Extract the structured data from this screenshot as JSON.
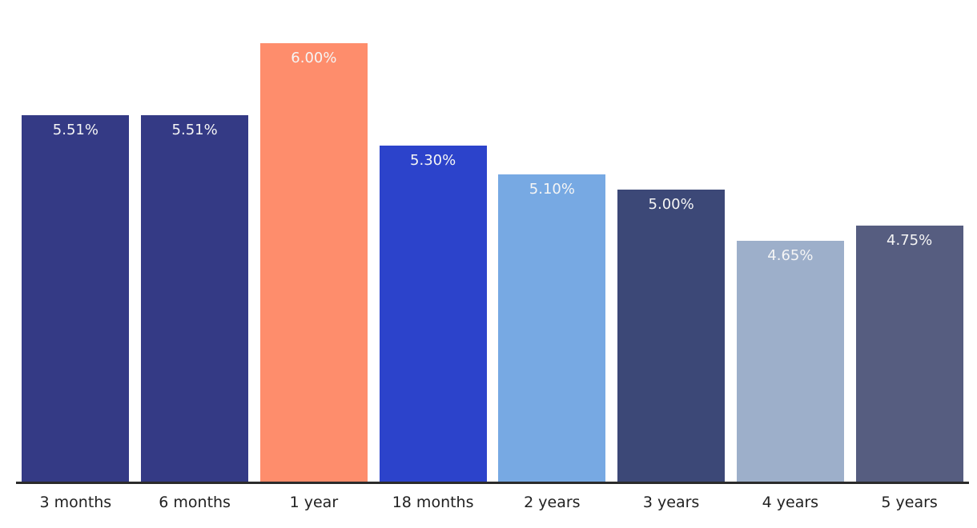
{
  "chart_data": {
    "type": "bar",
    "title": "",
    "xlabel": "",
    "ylabel": "",
    "categories": [
      "3 months",
      "6 months",
      "1 year",
      "18 months",
      "2 years",
      "3 years",
      "4 years",
      "5 years"
    ],
    "values": [
      5.51,
      5.51,
      6.0,
      5.3,
      5.1,
      5.0,
      4.65,
      4.75
    ],
    "value_labels": [
      "5.51%",
      "5.51%",
      "6.00%",
      "5.30%",
      "5.10%",
      "5.00%",
      "4.65%",
      "4.75%"
    ],
    "bar_colors": [
      "#343a85",
      "#343a85",
      "#fe8d6c",
      "#2c43cb",
      "#77a9e3",
      "#3c4877",
      "#9dafca",
      "#565d80"
    ],
    "ylim": [
      3.0,
      6.0
    ],
    "grid": false,
    "legend": false,
    "y_axis_visible": false,
    "axis_line_color": "#2b2b2b",
    "value_label_color": "#f5f5f5",
    "tick_label_color": "#212121",
    "background_color": "#ffffff"
  }
}
